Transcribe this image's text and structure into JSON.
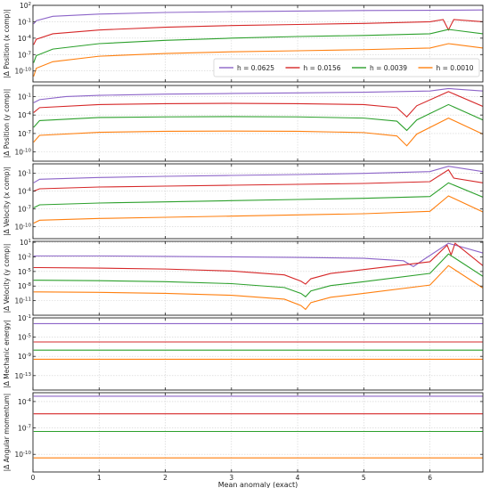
{
  "colors": {
    "h0": "#8c64c8",
    "h1": "#d62728",
    "h2": "#2ca02c",
    "h3": "#ff7f0e",
    "grid": "#d0d0d0",
    "axis": "#222222"
  },
  "legend": {
    "placement": "inside-lower-right of first panel",
    "entries": [
      "h = 0.0625",
      "h = 0.0156",
      "h = 0.0039",
      "h = 0.0010"
    ]
  },
  "chart_data": [
    {
      "type": "line",
      "ylabel": "|Δ Position (x comp)|",
      "yscale": "log",
      "ylim_exp": [
        -12,
        2
      ],
      "yticks": [
        "10^2",
        "10^-1",
        "10^-4",
        "10^-7",
        "10^-10"
      ],
      "ytick_exps": [
        2,
        -1,
        -4,
        -7,
        -10
      ],
      "xlim": [
        0,
        6.8
      ],
      "xticks": [
        "0",
        "1",
        "2",
        "3",
        "4",
        "5",
        "6"
      ],
      "xtick_vals": [
        0,
        1,
        2,
        3,
        4,
        5,
        6
      ],
      "grid": true,
      "series": [
        {
          "name": "h = 0.0625",
          "color_key": "h0",
          "x": [
            0.01,
            0.05,
            0.3,
            1,
            2,
            3,
            4,
            5,
            6,
            6.8
          ],
          "log10_y": [
            -1.4,
            -0.8,
            0.0,
            0.4,
            0.7,
            0.85,
            0.95,
            1.05,
            1.1,
            1.15
          ]
        },
        {
          "name": "h = 0.0156",
          "color_key": "h1",
          "x": [
            0.01,
            0.05,
            0.3,
            1,
            2,
            3,
            4,
            5,
            6,
            6.2,
            6.28,
            6.36,
            6.8
          ],
          "log10_y": [
            -5.2,
            -4.2,
            -3.2,
            -2.5,
            -2.0,
            -1.7,
            -1.5,
            -1.3,
            -1.0,
            -0.6,
            -2.5,
            -0.6,
            -1.0
          ]
        },
        {
          "name": "h = 0.0039",
          "color_key": "h2",
          "x": [
            0.01,
            0.05,
            0.3,
            1,
            2,
            3,
            4,
            5,
            6,
            6.28,
            6.8
          ],
          "log10_y": [
            -8.5,
            -7.2,
            -6.0,
            -5.0,
            -4.4,
            -4.0,
            -3.7,
            -3.5,
            -3.2,
            -2.4,
            -3.2
          ]
        },
        {
          "name": "h = 0.0010",
          "color_key": "h3",
          "x": [
            0.01,
            0.05,
            0.3,
            1,
            2,
            3,
            4,
            5,
            6,
            6.28,
            6.8
          ],
          "log10_y": [
            -11.0,
            -9.5,
            -8.3,
            -7.3,
            -6.8,
            -6.5,
            -6.3,
            -6.1,
            -5.8,
            -5.0,
            -5.8
          ]
        }
      ]
    },
    {
      "type": "line",
      "ylabel": "|Δ Position (y comp)|",
      "yscale": "log",
      "ylim_exp": [
        -11.5,
        0.8
      ],
      "yticks": [
        "10^-1",
        "10^-4",
        "10^-7",
        "10^-10"
      ],
      "ytick_exps": [
        -1,
        -4,
        -7,
        -10
      ],
      "xlim": [
        0,
        6.8
      ],
      "xticks": [
        "0",
        "1",
        "2",
        "3",
        "4",
        "5",
        "6"
      ],
      "xtick_vals": [
        0,
        1,
        2,
        3,
        4,
        5,
        6
      ],
      "grid": true,
      "series": [
        {
          "name": "h = 0.0625",
          "color_key": "h0",
          "x": [
            0.01,
            0.1,
            0.5,
            1,
            2,
            3,
            4,
            5,
            6,
            6.28,
            6.8
          ],
          "log10_y": [
            -2.0,
            -1.5,
            -1.0,
            -0.8,
            -0.6,
            -0.5,
            -0.4,
            -0.3,
            -0.1,
            0.3,
            -0.1
          ]
        },
        {
          "name": "h = 0.0156",
          "color_key": "h1",
          "x": [
            0.01,
            0.1,
            1,
            2,
            3,
            4,
            5,
            5.5,
            5.65,
            5.8,
            6.28,
            6.8
          ],
          "log10_y": [
            -3.6,
            -2.8,
            -2.3,
            -2.15,
            -2.1,
            -2.15,
            -2.3,
            -2.8,
            -4.3,
            -2.5,
            -0.2,
            -2.6
          ]
        },
        {
          "name": "h = 0.0039",
          "color_key": "h2",
          "x": [
            0.01,
            0.1,
            1,
            2,
            3,
            4,
            5,
            5.5,
            5.65,
            5.8,
            6.28,
            6.8
          ],
          "log10_y": [
            -6.0,
            -4.9,
            -4.4,
            -4.3,
            -4.25,
            -4.3,
            -4.5,
            -5.0,
            -6.5,
            -4.8,
            -2.3,
            -4.8
          ]
        },
        {
          "name": "h = 0.0010",
          "color_key": "h3",
          "x": [
            0.01,
            0.1,
            1,
            2,
            3,
            4,
            5,
            5.5,
            5.65,
            5.8,
            6.28,
            6.8
          ],
          "log10_y": [
            -8.4,
            -7.3,
            -6.8,
            -6.65,
            -6.6,
            -6.65,
            -6.85,
            -7.4,
            -9.0,
            -7.1,
            -4.5,
            -7.1
          ]
        }
      ]
    },
    {
      "type": "line",
      "ylabel": "|Δ Velocity (x comp)|",
      "yscale": "log",
      "ylim_exp": [
        -12,
        0.6
      ],
      "yticks": [
        "10^-1",
        "10^-4",
        "10^-7",
        "10^-10"
      ],
      "ytick_exps": [
        -1,
        -4,
        -7,
        -10
      ],
      "xlim": [
        0,
        6.8
      ],
      "xticks": [
        "0",
        "1",
        "2",
        "3",
        "4",
        "5",
        "6"
      ],
      "xtick_vals": [
        0,
        1,
        2,
        3,
        4,
        5,
        6
      ],
      "grid": true,
      "series": [
        {
          "name": "h = 0.0625",
          "color_key": "h0",
          "x": [
            0.01,
            0.1,
            1,
            2,
            3,
            4,
            5,
            6,
            6.28,
            6.8
          ],
          "log10_y": [
            -2.6,
            -2.0,
            -1.7,
            -1.5,
            -1.35,
            -1.2,
            -1.0,
            -0.7,
            0.2,
            -0.7
          ]
        },
        {
          "name": "h = 0.0156",
          "color_key": "h1",
          "x": [
            0.01,
            0.1,
            1,
            2,
            3,
            4,
            5,
            6,
            6.28,
            6.36,
            6.8
          ],
          "log10_y": [
            -4.0,
            -3.6,
            -3.3,
            -3.15,
            -3.0,
            -2.85,
            -2.7,
            -2.4,
            -0.4,
            -1.8,
            -2.6
          ]
        },
        {
          "name": "h = 0.0039",
          "color_key": "h2",
          "x": [
            0.01,
            0.1,
            1,
            2,
            3,
            4,
            5,
            6,
            6.28,
            6.8
          ],
          "log10_y": [
            -6.8,
            -6.3,
            -6.0,
            -5.8,
            -5.6,
            -5.4,
            -5.2,
            -4.9,
            -2.6,
            -5.0
          ]
        },
        {
          "name": "h = 0.0010",
          "color_key": "h3",
          "x": [
            0.01,
            0.1,
            1,
            2,
            3,
            4,
            5,
            6,
            6.28,
            6.8
          ],
          "log10_y": [
            -9.4,
            -8.9,
            -8.6,
            -8.4,
            -8.2,
            -8.0,
            -7.8,
            -7.4,
            -4.8,
            -7.5
          ]
        }
      ]
    },
    {
      "type": "line",
      "ylabel": "|Δ Velocity (y comp)|",
      "yscale": "log",
      "ylim_exp": [
        -14,
        1.2
      ],
      "yticks": [
        "10^1",
        "10^-2",
        "10^-5",
        "10^-8",
        "10^-11"
      ],
      "ytick_exps": [
        1,
        -2,
        -5,
        -8,
        -11
      ],
      "xlim": [
        0,
        6.8
      ],
      "xticks": [
        "0",
        "1",
        "2",
        "3",
        "4",
        "5",
        "6"
      ],
      "xtick_vals": [
        0,
        1,
        2,
        3,
        4,
        5,
        6
      ],
      "grid": true,
      "series": [
        {
          "name": "h = 0.0625",
          "color_key": "h0",
          "x": [
            0.01,
            0.1,
            1,
            2,
            3,
            4,
            5,
            5.6,
            5.75,
            5.9,
            6.28,
            6.8
          ],
          "log10_y": [
            -1.8,
            -1.8,
            -1.8,
            -1.9,
            -2.0,
            -2.1,
            -2.3,
            -2.8,
            -4.0,
            -2.6,
            0.8,
            -1.2
          ]
        },
        {
          "name": "h = 0.0156",
          "color_key": "h1",
          "x": [
            0.01,
            0.1,
            1,
            2,
            3,
            3.8,
            4.05,
            4.12,
            4.2,
            4.5,
            5,
            6,
            6.26,
            6.32,
            6.38,
            6.8
          ],
          "log10_y": [
            -4.2,
            -4.2,
            -4.3,
            -4.5,
            -4.9,
            -5.7,
            -7.0,
            -7.6,
            -6.5,
            -5.4,
            -4.6,
            -3.0,
            0.4,
            -1.6,
            0.8,
            -3.8
          ]
        },
        {
          "name": "h = 0.0039",
          "color_key": "h2",
          "x": [
            0.01,
            0.1,
            1,
            2,
            3,
            3.8,
            4.05,
            4.12,
            4.2,
            4.5,
            5,
            6,
            6.28,
            6.8
          ],
          "log10_y": [
            -6.8,
            -6.8,
            -6.9,
            -7.1,
            -7.5,
            -8.3,
            -9.5,
            -10.2,
            -9.0,
            -7.9,
            -7.1,
            -5.4,
            -1.4,
            -6.0
          ]
        },
        {
          "name": "h = 0.0010",
          "color_key": "h3",
          "x": [
            0.01,
            0.1,
            1,
            2,
            3,
            3.8,
            4.05,
            4.12,
            4.2,
            4.5,
            5,
            6,
            6.28,
            6.8
          ],
          "log10_y": [
            -9.2,
            -9.2,
            -9.3,
            -9.5,
            -9.9,
            -10.7,
            -12.0,
            -12.8,
            -11.4,
            -10.3,
            -9.5,
            -7.8,
            -3.8,
            -8.4
          ]
        }
      ]
    },
    {
      "type": "line",
      "ylabel": "|Δ Mechanic energy|",
      "yscale": "log",
      "ylim_exp": [
        -16,
        -1
      ],
      "yticks": [
        "10^-1",
        "10^-5",
        "10^-9",
        "10^-13"
      ],
      "ytick_exps": [
        -1,
        -5,
        -9,
        -13
      ],
      "xlim": [
        0,
        6.8
      ],
      "xticks": [
        "0",
        "1",
        "2",
        "3",
        "4",
        "5",
        "6"
      ],
      "xtick_vals": [
        0,
        1,
        2,
        3,
        4,
        5,
        6
      ],
      "grid": true,
      "series": [
        {
          "name": "h = 0.0625",
          "color_key": "h0",
          "x": [
            0.01,
            6.8
          ],
          "log10_y": [
            -2.2,
            -2.2
          ]
        },
        {
          "name": "h = 0.0156",
          "color_key": "h1",
          "x": [
            0.01,
            6.8
          ],
          "log10_y": [
            -6.0,
            -6.0
          ]
        },
        {
          "name": "h = 0.0039",
          "color_key": "h2",
          "x": [
            0.01,
            6.8
          ],
          "log10_y": [
            -7.7,
            -7.7
          ]
        },
        {
          "name": "h = 0.0010",
          "color_key": "h3",
          "x": [
            0.01,
            6.8
          ],
          "log10_y": [
            -9.6,
            -9.6
          ]
        }
      ]
    },
    {
      "type": "line",
      "ylabel": "|Δ Angular momentum|",
      "yscale": "log",
      "ylim_exp": [
        -12,
        -3
      ],
      "yticks": [
        "10^-4",
        "10^-7",
        "10^-10"
      ],
      "ytick_exps": [
        -4,
        -7,
        -10
      ],
      "xlim": [
        0,
        6.8
      ],
      "xticks": [
        "0",
        "1",
        "2",
        "3",
        "4",
        "5",
        "6"
      ],
      "xtick_vals": [
        0,
        1,
        2,
        3,
        4,
        5,
        6
      ],
      "xlabel": "Mean anomaly (exact)",
      "grid": true,
      "series": [
        {
          "name": "h = 0.0625",
          "color_key": "h0",
          "x": [
            0.01,
            6.8
          ],
          "log10_y": [
            -3.4,
            -3.4
          ]
        },
        {
          "name": "h = 0.0156",
          "color_key": "h1",
          "x": [
            0.01,
            6.8
          ],
          "log10_y": [
            -5.4,
            -5.4
          ]
        },
        {
          "name": "h = 0.0039",
          "color_key": "h2",
          "x": [
            0.01,
            6.8
          ],
          "log10_y": [
            -7.4,
            -7.4
          ]
        },
        {
          "name": "h = 0.0010",
          "color_key": "h3",
          "x": [
            0.01,
            6.8
          ],
          "log10_y": [
            -10.4,
            -10.4
          ]
        }
      ]
    }
  ]
}
